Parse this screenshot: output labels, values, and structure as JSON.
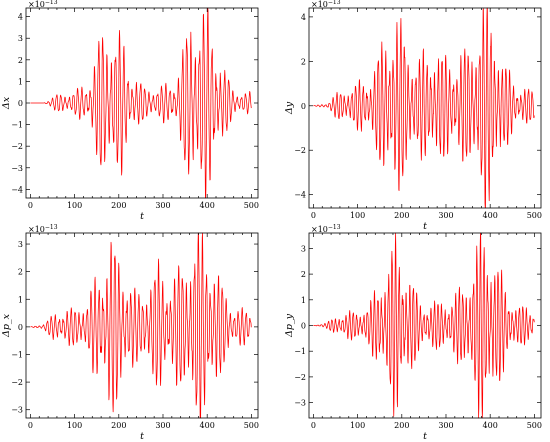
{
  "chart_data": [
    {
      "type": "line",
      "xlabel": "t",
      "ylabel": "Δx",
      "multiplier": "×10",
      "multiplier_exp": "−13",
      "xlim": [
        -10,
        515
      ],
      "ylim": [
        -4.4,
        4.4
      ],
      "xticks": [
        0,
        100,
        200,
        300,
        400,
        500
      ],
      "yticks": [
        -4,
        -3,
        -2,
        -1,
        0,
        1,
        2,
        3,
        4
      ],
      "ytick_labels": [
        "−4",
        "−3",
        "−2",
        "−1",
        "0",
        "1",
        "2",
        "3",
        "4"
      ],
      "grid": false,
      "color": "#ff0000",
      "envelope": [
        [
          0,
          0
        ],
        [
          30,
          0
        ],
        [
          60,
          0.35
        ],
        [
          100,
          0.5
        ],
        [
          130,
          0.8
        ],
        [
          160,
          2.9
        ],
        [
          185,
          3.3
        ],
        [
          205,
          2.8
        ],
        [
          225,
          1.4
        ],
        [
          260,
          0.6
        ],
        [
          300,
          0.7
        ],
        [
          330,
          1.0
        ],
        [
          360,
          3.4
        ],
        [
          385,
          4.0
        ],
        [
          405,
          3.6
        ],
        [
          430,
          1.8
        ],
        [
          460,
          0.5
        ],
        [
          500,
          0.4
        ]
      ],
      "period": 9.5
    },
    {
      "type": "line",
      "xlabel": "t",
      "ylabel": "Δy",
      "multiplier": "×10",
      "multiplier_exp": "−13",
      "xlim": [
        -10,
        515
      ],
      "ylim": [
        -4.6,
        4.4
      ],
      "xticks": [
        0,
        100,
        200,
        300,
        400,
        500
      ],
      "yticks": [
        -4,
        -2,
        0,
        2,
        4
      ],
      "ytick_labels": [
        "−4",
        "−2",
        "0",
        "2",
        "4"
      ],
      "grid": false,
      "color": "#ff0000",
      "envelope": [
        [
          0,
          0
        ],
        [
          30,
          0.1
        ],
        [
          60,
          0.6
        ],
        [
          100,
          0.9
        ],
        [
          130,
          1.2
        ],
        [
          160,
          2.8
        ],
        [
          180,
          3.6
        ],
        [
          205,
          3.0
        ],
        [
          235,
          1.8
        ],
        [
          270,
          2.4
        ],
        [
          300,
          2.0
        ],
        [
          330,
          2.0
        ],
        [
          360,
          2.6
        ],
        [
          385,
          4.2
        ],
        [
          405,
          3.8
        ],
        [
          430,
          1.8
        ],
        [
          460,
          0.8
        ],
        [
          500,
          0.6
        ]
      ],
      "period": 8.5
    },
    {
      "type": "line",
      "xlabel": "t",
      "ylabel": "Δp_x",
      "multiplier": "×10",
      "multiplier_exp": "−13",
      "xlim": [
        -10,
        515
      ],
      "ylim": [
        -3.3,
        3.4
      ],
      "xticks": [
        0,
        100,
        200,
        300,
        400,
        500
      ],
      "yticks": [
        -3,
        -2,
        -1,
        0,
        1,
        2,
        3
      ],
      "ytick_labels": [
        "−3",
        "−2",
        "−1",
        "0",
        "1",
        "2",
        "3"
      ],
      "grid": false,
      "color": "#ff0000",
      "envelope": [
        [
          0,
          0
        ],
        [
          30,
          0.1
        ],
        [
          60,
          0.5
        ],
        [
          100,
          0.6
        ],
        [
          130,
          0.9
        ],
        [
          160,
          2.0
        ],
        [
          180,
          2.9
        ],
        [
          205,
          2.2
        ],
        [
          240,
          1.0
        ],
        [
          270,
          1.6
        ],
        [
          290,
          2.0
        ],
        [
          320,
          1.5
        ],
        [
          355,
          2.4
        ],
        [
          380,
          3.2
        ],
        [
          400,
          2.8
        ],
        [
          430,
          1.5
        ],
        [
          460,
          0.6
        ],
        [
          500,
          0.5
        ]
      ],
      "period": 9.0
    },
    {
      "type": "line",
      "xlabel": "t",
      "ylabel": "Δp_y",
      "multiplier": "×10",
      "multiplier_exp": "−13",
      "xlim": [
        -10,
        515
      ],
      "ylim": [
        -3.6,
        3.6
      ],
      "xticks": [
        0,
        100,
        200,
        300,
        400,
        500
      ],
      "yticks": [
        -3,
        -2,
        -1,
        0,
        1,
        2,
        3
      ],
      "ytick_labels": [
        "−3",
        "−2",
        "−1",
        "0",
        "1",
        "2",
        "3"
      ],
      "grid": false,
      "color": "#ff0000",
      "envelope": [
        [
          0,
          0
        ],
        [
          30,
          0.1
        ],
        [
          60,
          0.4
        ],
        [
          100,
          0.5
        ],
        [
          130,
          0.8
        ],
        [
          160,
          2.0
        ],
        [
          185,
          3.0
        ],
        [
          210,
          2.2
        ],
        [
          240,
          0.8
        ],
        [
          280,
          0.8
        ],
        [
          320,
          1.0
        ],
        [
          355,
          2.0
        ],
        [
          385,
          3.5
        ],
        [
          405,
          2.8
        ],
        [
          430,
          1.5
        ],
        [
          460,
          0.7
        ],
        [
          500,
          0.6
        ]
      ],
      "period": 8.0
    }
  ]
}
